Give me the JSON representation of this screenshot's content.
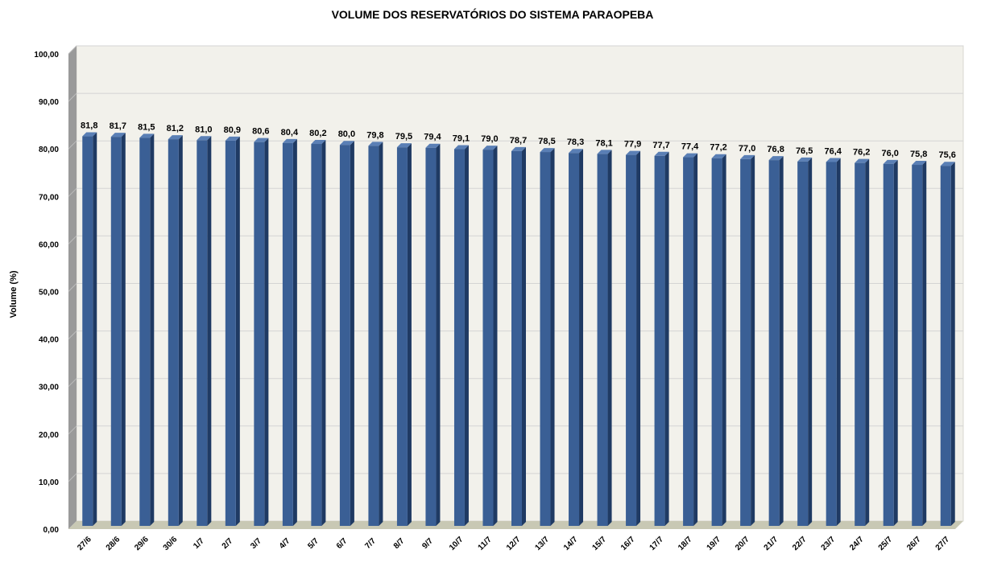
{
  "chart_data": {
    "type": "bar",
    "title": "VOLUME DOS RESERVATÓRIOS DO SISTEMA PARAOPEBA",
    "ylabel": "Volume (%)",
    "xlabel": "",
    "ylim": [
      0,
      100
    ],
    "y_ticks": [
      "0,00",
      "10,00",
      "20,00",
      "30,00",
      "40,00",
      "50,00",
      "60,00",
      "70,00",
      "80,00",
      "90,00",
      "100,00"
    ],
    "categories": [
      "27/6",
      "28/6",
      "29/6",
      "30/6",
      "1/7",
      "2/7",
      "3/7",
      "4/7",
      "5/7",
      "6/7",
      "7/7",
      "8/7",
      "9/7",
      "10/7",
      "11/7",
      "12/7",
      "13/7",
      "14/7",
      "15/7",
      "16/7",
      "17/7",
      "18/7",
      "19/7",
      "20/7",
      "21/7",
      "22/7",
      "23/7",
      "24/7",
      "25/7",
      "26/7",
      "27/7"
    ],
    "values": [
      81.8,
      81.7,
      81.5,
      81.2,
      81.0,
      80.9,
      80.6,
      80.4,
      80.2,
      80.0,
      79.8,
      79.5,
      79.4,
      79.1,
      79.0,
      78.7,
      78.5,
      78.3,
      78.1,
      77.9,
      77.7,
      77.4,
      77.2,
      77.0,
      76.8,
      76.5,
      76.4,
      76.2,
      76.0,
      75.8,
      75.6
    ],
    "value_labels": [
      "81,8",
      "81,7",
      "81,5",
      "81,2",
      "81,0",
      "80,9",
      "80,6",
      "80,4",
      "80,2",
      "80,0",
      "79,8",
      "79,5",
      "79,4",
      "79,1",
      "79,0",
      "78,7",
      "78,5",
      "78,3",
      "78,1",
      "77,9",
      "77,7",
      "77,4",
      "77,2",
      "77,0",
      "76,8",
      "76,5",
      "76,4",
      "76,2",
      "76,0",
      "75,8",
      "75,6"
    ],
    "grid": true,
    "legend": "none",
    "colors": {
      "bar_front": "#3a5f95",
      "bar_side": "#1f3a63",
      "bar_top": "#5a7fb5",
      "wall": "#f2f1eb",
      "wall_side": "#9a9a9a",
      "floor": "#c8c8b4",
      "grid": "#d4d4d4"
    }
  }
}
